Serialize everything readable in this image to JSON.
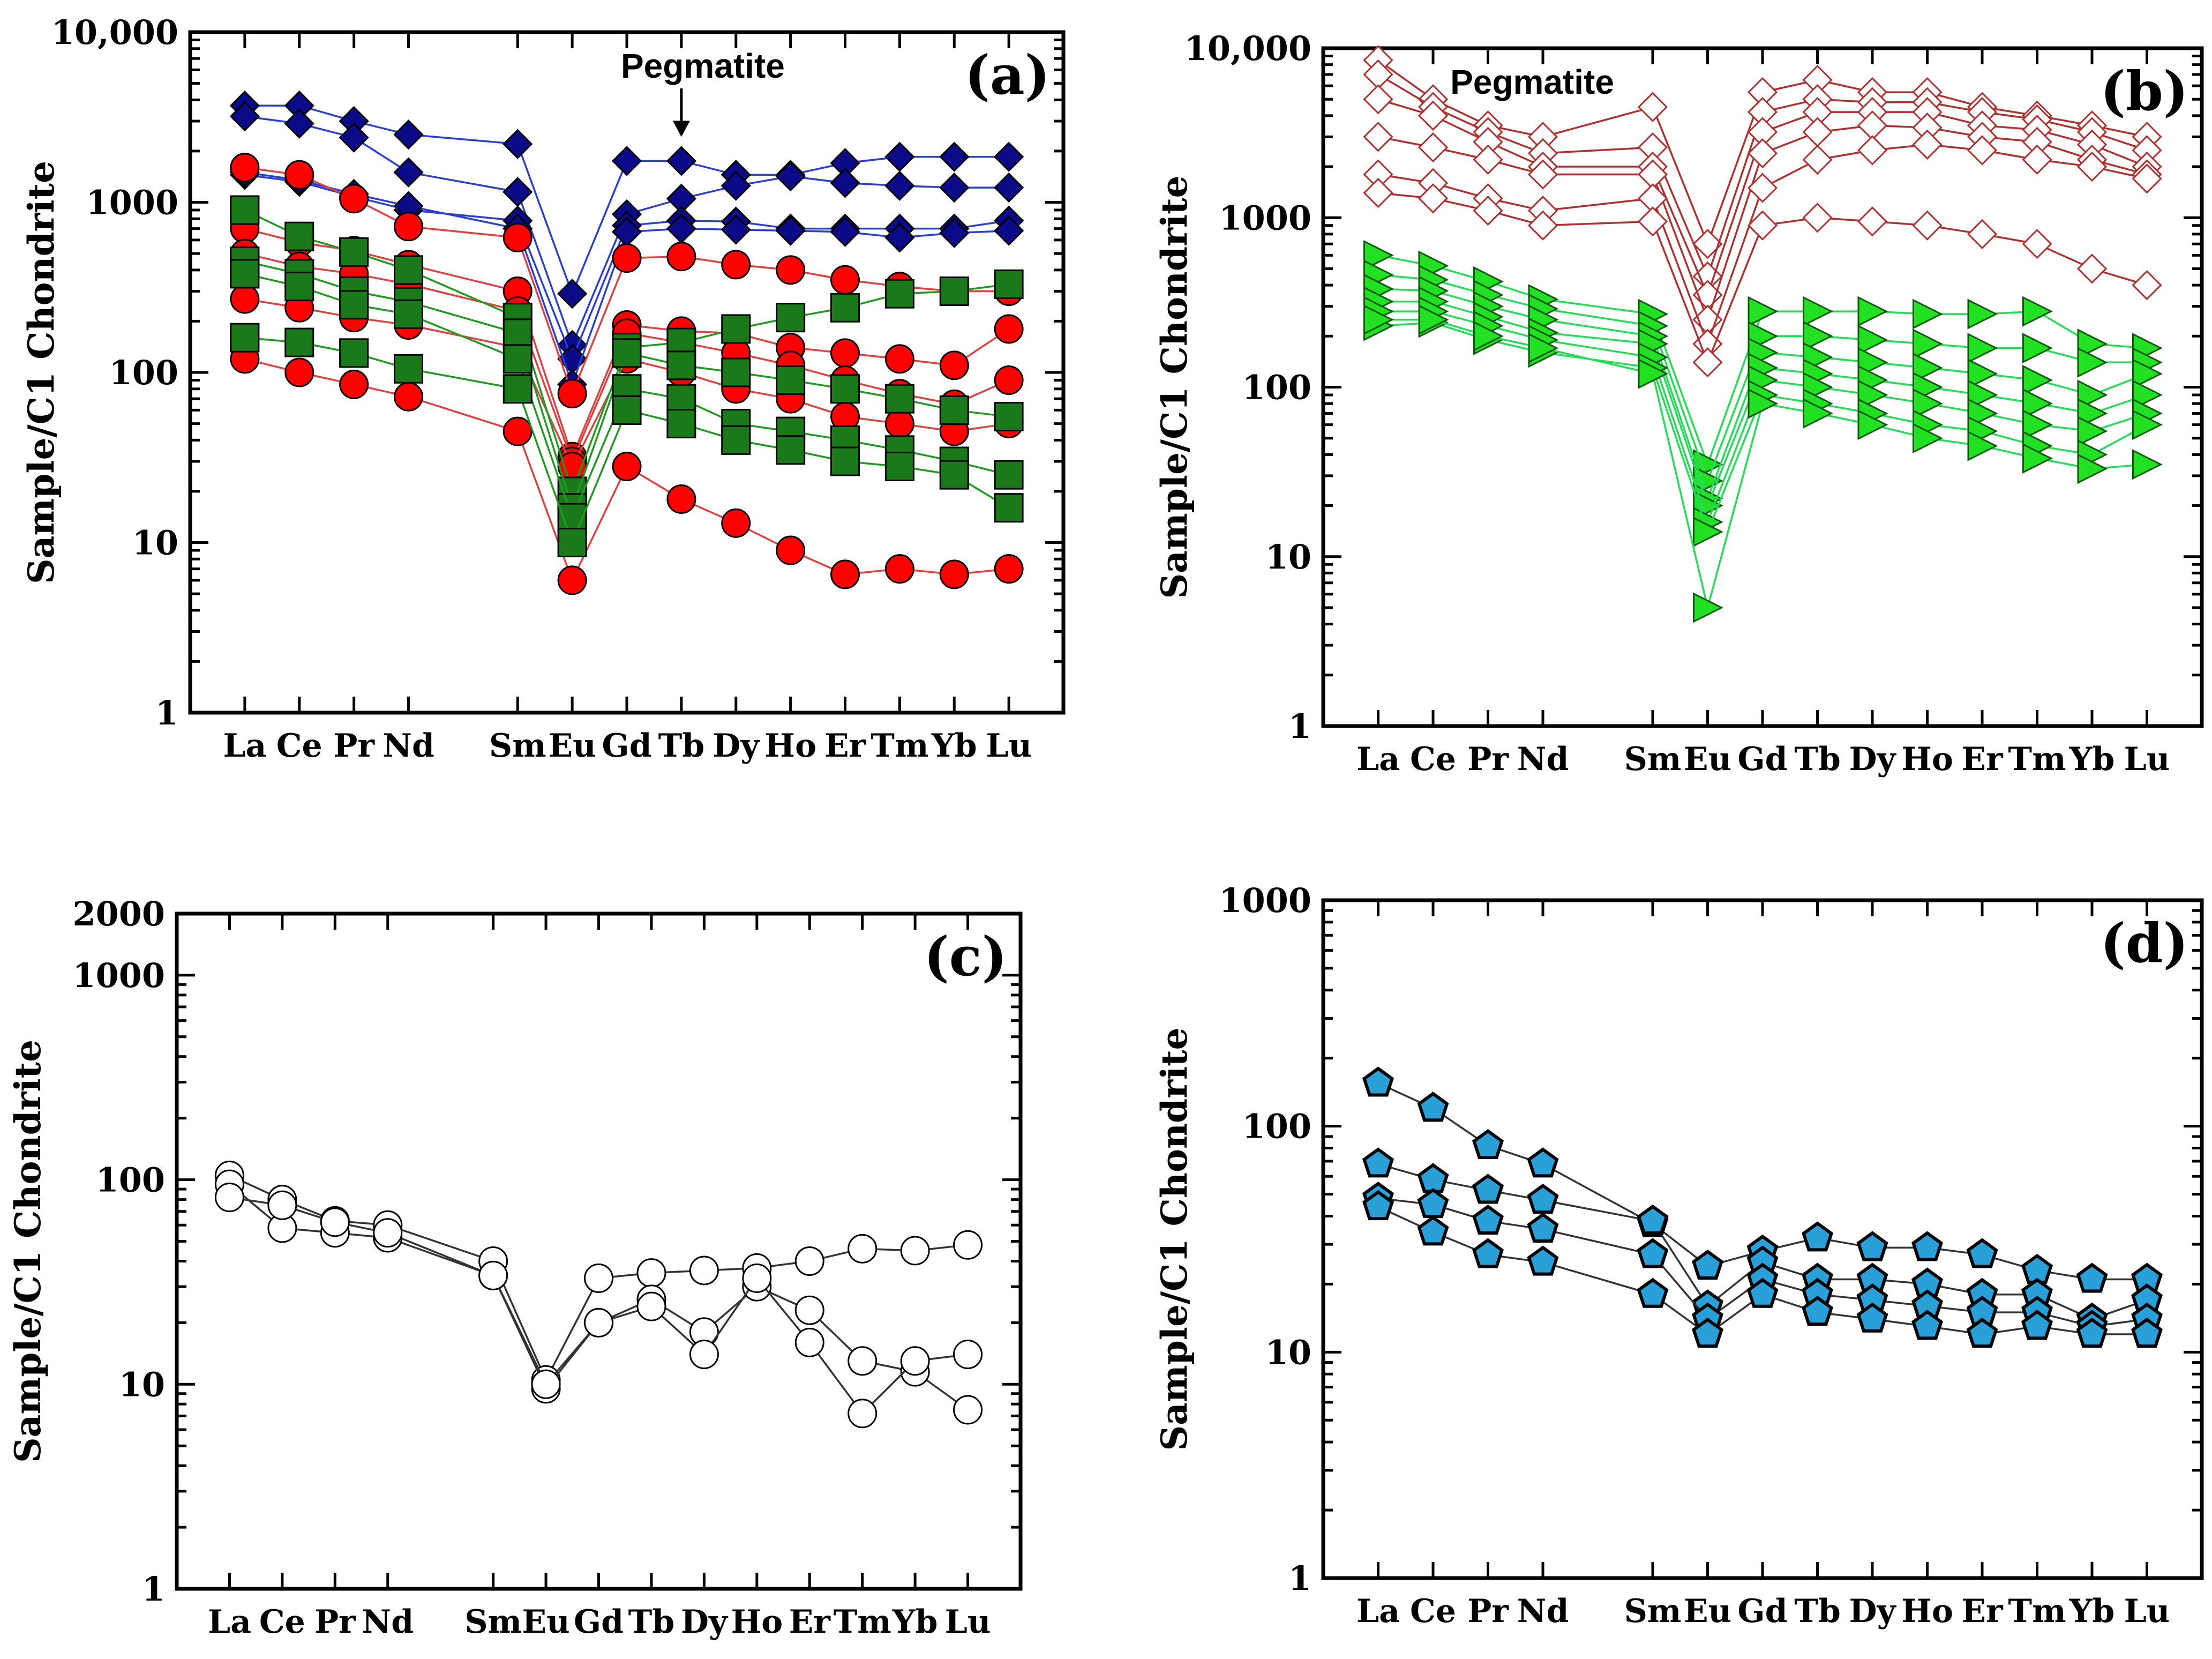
{
  "figure": {
    "description": "Four chondrite-normalized REE spider diagrams (a)-(d)"
  },
  "chart_data": [
    {
      "type": "line",
      "panel": "(a)",
      "ylabel": "Sample/C1 Chondrite",
      "yscale": "log",
      "ylim": [
        1,
        10000
      ],
      "yticks": [
        "1",
        "10",
        "100",
        "1000",
        "10,000"
      ],
      "ytick_values": [
        1,
        10,
        100,
        1000,
        10000
      ],
      "categories": [
        "La",
        "Ce",
        "Pr",
        "Nd",
        "Sm",
        "Eu",
        "Gd",
        "Tb",
        "Dy",
        "Ho",
        "Er",
        "Tm",
        "Yb",
        "Lu"
      ],
      "cat_pos": [
        1,
        2,
        3,
        4,
        6,
        7,
        8,
        9,
        10,
        11,
        12,
        13,
        14,
        15
      ],
      "annotation": {
        "text": "Pegmatite",
        "target": "Tb",
        "arrow_from": 4200,
        "arrow_to": 1750
      },
      "series_groups": [
        {
          "name": "Pegmatite (blue diamonds)",
          "marker": "diamond",
          "fill": "#0b0b8a",
          "line": "#2a3fd1",
          "series": [
            [
              3700,
              3700,
              3000,
              2500,
              null,
              2200,
              290,
              1750,
              1750,
              1450,
              1450,
              1700,
              1850,
              1850,
              1850
            ],
            [
              3200,
              2900,
              2400,
              1500,
              null,
              1150,
              145,
              850,
              1050,
              1250,
              1420,
              1300,
              1250,
              1220,
              1220
            ],
            [
              1450,
              1320,
              1080,
              900,
              null,
              780,
              120,
              730,
              780,
              770,
              700,
              700,
              700,
              700,
              780
            ],
            [
              1500,
              1350,
              1120,
              950,
              null,
              700,
              85,
              670,
              700,
              690,
              680,
              670,
              620,
              660,
              680
            ]
          ]
        },
        {
          "name": "Red circles",
          "marker": "circle",
          "fill": "#ff0000",
          "line": "#e04040",
          "series": [
            [
              1600,
              1450,
              1050,
              720,
              null,
              620,
              75,
              470,
              480,
              430,
              400,
              350,
              320,
              300,
              300
            ],
            [
              700,
              580,
              520,
              430,
              null,
              300,
              32,
              190,
              175,
              170,
              140,
              130,
              120,
              110,
              180
            ],
            [
              500,
              420,
              380,
              330,
              null,
              230,
              30,
              170,
              150,
              130,
              110,
              90,
              75,
              65,
              90
            ],
            [
              270,
              240,
              210,
              190,
              null,
              140,
              28,
              120,
              100,
              80,
              70,
              55,
              50,
              45,
              50
            ],
            [
              120,
              100,
              85,
              72,
              null,
              45,
              6,
              28,
              18,
              13,
              9,
              6.5,
              7,
              6.5,
              7
            ]
          ]
        },
        {
          "name": "Green squares",
          "marker": "square",
          "fill": "#1a7a1a",
          "line": "#1f9a1f",
          "series": [
            [
              900,
              630,
              510,
              400,
              null,
              210,
              20,
              140,
              150,
              180,
              210,
              240,
              290,
              300,
              330
            ],
            [
              450,
              380,
              300,
              260,
              null,
              170,
              16,
              130,
              110,
              100,
              90,
              80,
              70,
              60,
              55
            ],
            [
              380,
              320,
              250,
              220,
              null,
              120,
              14,
              80,
              70,
              50,
              45,
              40,
              35,
              30,
              25
            ],
            [
              160,
              150,
              130,
              105,
              null,
              80,
              10,
              60,
              50,
              40,
              35,
              30,
              28,
              25,
              16
            ]
          ]
        }
      ]
    },
    {
      "type": "line",
      "panel": "(b)",
      "ylabel": "Sample/C1 Chondrite",
      "yscale": "log",
      "ylim": [
        1,
        10000
      ],
      "yticks": [
        "1",
        "10",
        "100",
        "1000",
        "10,000"
      ],
      "ytick_values": [
        1,
        10,
        100,
        1000,
        10000
      ],
      "categories": [
        "La",
        "Ce",
        "Pr",
        "Nd",
        "Sm",
        "Eu",
        "Gd",
        "Tb",
        "Dy",
        "Ho",
        "Er",
        "Tm",
        "Yb",
        "Lu"
      ],
      "cat_pos": [
        1,
        2,
        3,
        4,
        6,
        7,
        8,
        9,
        10,
        11,
        12,
        13,
        14,
        15
      ],
      "annotation": {
        "text": "Pegmatite"
      },
      "series_groups": [
        {
          "name": "Pegmatite (open red diamonds)",
          "marker": "diamond-open",
          "fill": "#ffffff",
          "line": "#b03030",
          "series": [
            [
              8500,
              5000,
              3500,
              3000,
              null,
              4500,
              700,
              5500,
              6500,
              5500,
              5500,
              4500,
              4000,
              3500,
              3000
            ],
            [
              7000,
              4500,
              3200,
              2400,
              null,
              2600,
              450,
              4200,
              5000,
              4800,
              4800,
              4200,
              3800,
              3200,
              2500
            ],
            [
              5000,
              4000,
              2800,
              2000,
              null,
              2000,
              350,
              3200,
              4200,
              4200,
              4200,
              3500,
              3300,
              2700,
              2000
            ],
            [
              3000,
              2600,
              2200,
              1800,
              null,
              1800,
              250,
              2400,
              3200,
              3500,
              3400,
              3000,
              2800,
              2200,
              1800
            ],
            [
              1800,
              1600,
              1300,
              1100,
              null,
              1300,
              180,
              1500,
              2200,
              2500,
              2700,
              2500,
              2200,
              2000,
              1700
            ],
            [
              1400,
              1300,
              1100,
              900,
              null,
              950,
              140,
              900,
              1000,
              950,
              900,
              800,
              700,
              500,
              400
            ]
          ]
        },
        {
          "name": "Green triangles",
          "marker": "triangle",
          "fill": "#22e022",
          "line": "#22dd55",
          "series": [
            [
              600,
              520,
              420,
              330,
              null,
              270,
              35,
              280,
              280,
              280,
              270,
              270,
              280,
              180,
              170
            ],
            [
              460,
              430,
              350,
              290,
              null,
              230,
              28,
              200,
              200,
              190,
              180,
              170,
              170,
              140,
              140
            ],
            [
              380,
              370,
              300,
              250,
              null,
              200,
              22,
              160,
              150,
              140,
              130,
              120,
              110,
              90,
              120
            ],
            [
              320,
              320,
              260,
              210,
              null,
              180,
              20,
              130,
              120,
              110,
              100,
              90,
              80,
              70,
              90
            ],
            [
              280,
              280,
              230,
              190,
              null,
              150,
              16,
              110,
              100,
              90,
              80,
              70,
              60,
              55,
              70
            ],
            [
              230,
              240,
              190,
              160,
              null,
              130,
              14,
              90,
              80,
              70,
              60,
              55,
              45,
              40,
              60
            ],
            [
              250,
              250,
              200,
              170,
              null,
              120,
              5,
              80,
              70,
              60,
              50,
              45,
              38,
              33,
              35
            ]
          ]
        }
      ]
    },
    {
      "type": "line",
      "panel": "(c)",
      "ylabel": "Sample/C1 Chondrite",
      "yscale": "log",
      "ylim": [
        1,
        2000
      ],
      "yticks": [
        "1",
        "10",
        "100",
        "1000",
        "2000"
      ],
      "ytick_values": [
        1,
        10,
        100,
        1000,
        2000
      ],
      "categories": [
        "La",
        "Ce",
        "Pr",
        "Nd",
        "Sm",
        "Eu",
        "Gd",
        "Tb",
        "Dy",
        "Ho",
        "Er",
        "Tm",
        "Yb",
        "Lu"
      ],
      "cat_pos": [
        1,
        2,
        3,
        4,
        6,
        7,
        8,
        9,
        10,
        11,
        12,
        13,
        14,
        15
      ],
      "series_groups": [
        {
          "name": "Open circles",
          "marker": "circle-open",
          "fill": "#ffffff",
          "line": "#333333",
          "series": [
            [
              105,
              80,
              63,
              60,
              null,
              40,
              10.5,
              33,
              35,
              36,
              37,
              40,
              46,
              45,
              48
            ],
            [
              95,
              58,
              55,
              52,
              null,
              34,
              9.5,
              20,
              26,
              18,
              30,
              23,
              13,
              11.5,
              7.5
            ],
            [
              82,
              75,
              62,
              55,
              null,
              34,
              10,
              20,
              24,
              14,
              33,
              16,
              7.2,
              13,
              14
            ]
          ]
        }
      ]
    },
    {
      "type": "line",
      "panel": "(d)",
      "ylabel": "Sample/C1 Chondrite",
      "yscale": "log",
      "ylim": [
        1,
        1000
      ],
      "yticks": [
        "1",
        "10",
        "100",
        "1000"
      ],
      "ytick_values": [
        1,
        10,
        100,
        1000
      ],
      "categories": [
        "La",
        "Ce",
        "Pr",
        "Nd",
        "Sm",
        "Eu",
        "Gd",
        "Tb",
        "Dy",
        "Ho",
        "Er",
        "Tm",
        "Yb",
        "Lu"
      ],
      "cat_pos": [
        1,
        2,
        3,
        4,
        6,
        7,
        8,
        9,
        10,
        11,
        12,
        13,
        14,
        15
      ],
      "series_groups": [
        {
          "name": "Blue pentagons",
          "marker": "pentagon",
          "fill": "#2aa0d8",
          "line": "#333333",
          "series": [
            [
              155,
              120,
              82,
              68,
              null,
              37,
              24,
              28,
              32,
              29,
              29,
              27,
              23,
              21,
              21
            ],
            [
              68,
              58,
              52,
              47,
              null,
              38,
              16,
              25,
              21,
              21,
              20,
              18,
              18,
              14,
              17
            ],
            [
              48,
              45,
              38,
              35,
              null,
              27,
              14,
              21,
              18,
              17,
              16,
              15,
              15,
              13,
              14
            ],
            [
              44,
              34,
              27,
              25,
              null,
              18,
              12,
              18,
              15,
              14,
              13,
              12,
              13,
              12,
              12
            ]
          ]
        }
      ]
    }
  ]
}
